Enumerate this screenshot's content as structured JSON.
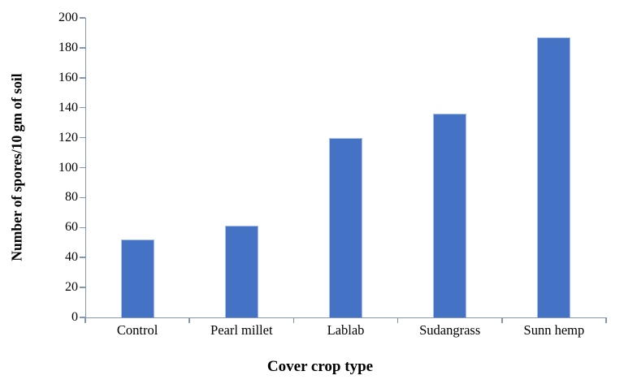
{
  "chart_data": {
    "type": "bar",
    "categories": [
      "Control",
      "Pearl millet",
      "Lablab",
      "Sudangrass",
      "Sunn hemp"
    ],
    "values": [
      52,
      61,
      120,
      136,
      187
    ],
    "title": "",
    "xlabel": "Cover crop type",
    "ylabel": "Number of spores/10 gm of soil",
    "ylim": [
      0,
      200
    ],
    "yticks": [
      0,
      20,
      40,
      60,
      80,
      100,
      120,
      140,
      160,
      180,
      200
    ],
    "grid": false,
    "legend": false,
    "bar_color": "#4472C4",
    "bar_border_color": "#a6bde8",
    "axis_color": "#8496B0",
    "text_color": "#000000",
    "background_color": "#ffffff"
  }
}
